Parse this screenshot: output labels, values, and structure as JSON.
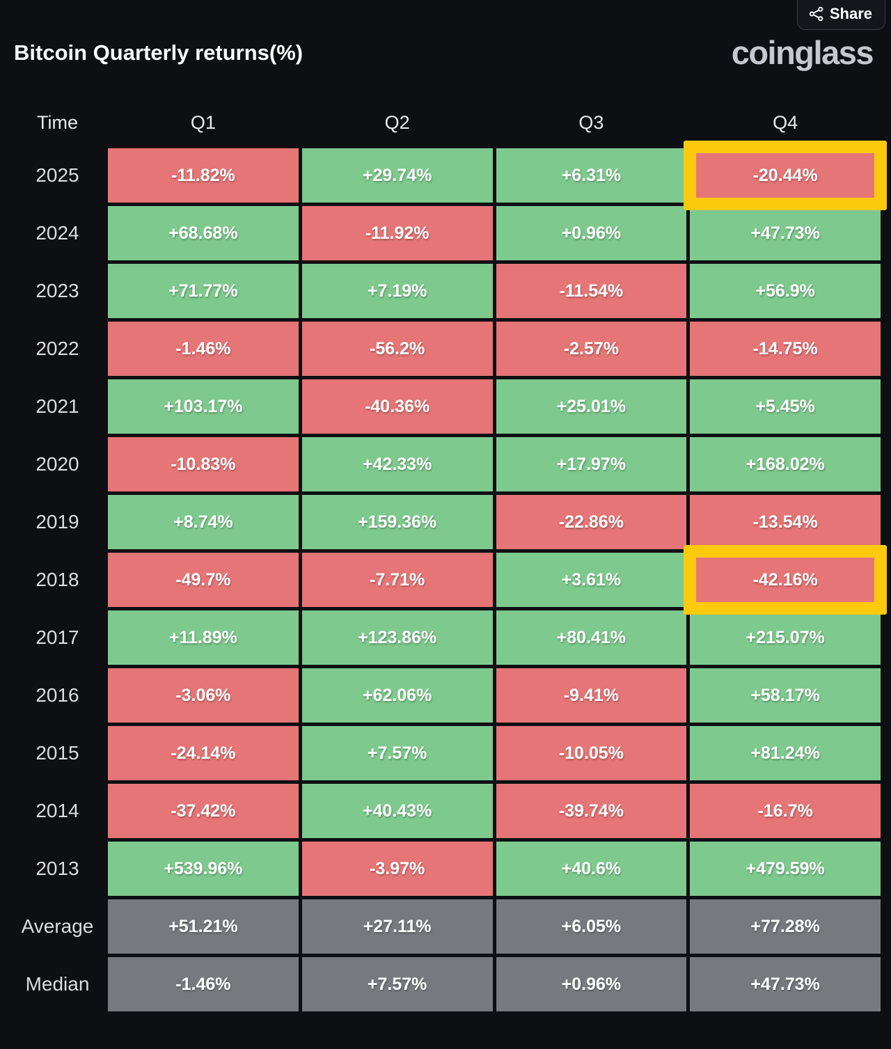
{
  "header": {
    "title": "Bitcoin Quarterly returns(%)",
    "share_label": "Share",
    "logo": "coinglass"
  },
  "colors": {
    "background": "#0d0f13",
    "positive": "#7ec98d",
    "negative": "#e57576",
    "neutral": "#77797e",
    "highlight": "#fdc90d"
  },
  "table": {
    "columns": [
      "Time",
      "Q1",
      "Q2",
      "Q3",
      "Q4"
    ],
    "rows": [
      {
        "label": "2025",
        "cells": [
          {
            "text": "-11.82%",
            "tone": "neg"
          },
          {
            "text": "+29.74%",
            "tone": "pos"
          },
          {
            "text": "+6.31%",
            "tone": "pos"
          },
          {
            "text": "-20.44%",
            "tone": "neg",
            "highlight": true
          }
        ]
      },
      {
        "label": "2024",
        "cells": [
          {
            "text": "+68.68%",
            "tone": "pos"
          },
          {
            "text": "-11.92%",
            "tone": "neg"
          },
          {
            "text": "+0.96%",
            "tone": "pos"
          },
          {
            "text": "+47.73%",
            "tone": "pos"
          }
        ]
      },
      {
        "label": "2023",
        "cells": [
          {
            "text": "+71.77%",
            "tone": "pos"
          },
          {
            "text": "+7.19%",
            "tone": "pos"
          },
          {
            "text": "-11.54%",
            "tone": "neg"
          },
          {
            "text": "+56.9%",
            "tone": "pos"
          }
        ]
      },
      {
        "label": "2022",
        "cells": [
          {
            "text": "-1.46%",
            "tone": "neg"
          },
          {
            "text": "-56.2%",
            "tone": "neg"
          },
          {
            "text": "-2.57%",
            "tone": "neg"
          },
          {
            "text": "-14.75%",
            "tone": "neg"
          }
        ]
      },
      {
        "label": "2021",
        "cells": [
          {
            "text": "+103.17%",
            "tone": "pos"
          },
          {
            "text": "-40.36%",
            "tone": "neg"
          },
          {
            "text": "+25.01%",
            "tone": "pos"
          },
          {
            "text": "+5.45%",
            "tone": "pos"
          }
        ]
      },
      {
        "label": "2020",
        "cells": [
          {
            "text": "-10.83%",
            "tone": "neg"
          },
          {
            "text": "+42.33%",
            "tone": "pos"
          },
          {
            "text": "+17.97%",
            "tone": "pos"
          },
          {
            "text": "+168.02%",
            "tone": "pos"
          }
        ]
      },
      {
        "label": "2019",
        "cells": [
          {
            "text": "+8.74%",
            "tone": "pos"
          },
          {
            "text": "+159.36%",
            "tone": "pos"
          },
          {
            "text": "-22.86%",
            "tone": "neg"
          },
          {
            "text": "-13.54%",
            "tone": "neg"
          }
        ]
      },
      {
        "label": "2018",
        "cells": [
          {
            "text": "-49.7%",
            "tone": "neg"
          },
          {
            "text": "-7.71%",
            "tone": "neg"
          },
          {
            "text": "+3.61%",
            "tone": "pos"
          },
          {
            "text": "-42.16%",
            "tone": "neg",
            "highlight": true
          }
        ]
      },
      {
        "label": "2017",
        "cells": [
          {
            "text": "+11.89%",
            "tone": "pos"
          },
          {
            "text": "+123.86%",
            "tone": "pos"
          },
          {
            "text": "+80.41%",
            "tone": "pos"
          },
          {
            "text": "+215.07%",
            "tone": "pos"
          }
        ]
      },
      {
        "label": "2016",
        "cells": [
          {
            "text": "-3.06%",
            "tone": "neg"
          },
          {
            "text": "+62.06%",
            "tone": "pos"
          },
          {
            "text": "-9.41%",
            "tone": "neg"
          },
          {
            "text": "+58.17%",
            "tone": "pos"
          }
        ]
      },
      {
        "label": "2015",
        "cells": [
          {
            "text": "-24.14%",
            "tone": "neg"
          },
          {
            "text": "+7.57%",
            "tone": "pos"
          },
          {
            "text": "-10.05%",
            "tone": "neg"
          },
          {
            "text": "+81.24%",
            "tone": "pos"
          }
        ]
      },
      {
        "label": "2014",
        "cells": [
          {
            "text": "-37.42%",
            "tone": "neg"
          },
          {
            "text": "+40.43%",
            "tone": "pos"
          },
          {
            "text": "-39.74%",
            "tone": "neg"
          },
          {
            "text": "-16.7%",
            "tone": "neg"
          }
        ]
      },
      {
        "label": "2013",
        "cells": [
          {
            "text": "+539.96%",
            "tone": "pos"
          },
          {
            "text": "-3.97%",
            "tone": "neg"
          },
          {
            "text": "+40.6%",
            "tone": "pos"
          },
          {
            "text": "+479.59%",
            "tone": "pos"
          }
        ]
      },
      {
        "label": "Average",
        "cells": [
          {
            "text": "+51.21%",
            "tone": "neutral"
          },
          {
            "text": "+27.11%",
            "tone": "neutral"
          },
          {
            "text": "+6.05%",
            "tone": "neutral"
          },
          {
            "text": "+77.28%",
            "tone": "neutral"
          }
        ]
      },
      {
        "label": "Median",
        "cells": [
          {
            "text": "-1.46%",
            "tone": "neutral"
          },
          {
            "text": "+7.57%",
            "tone": "neutral"
          },
          {
            "text": "+0.96%",
            "tone": "neutral"
          },
          {
            "text": "+47.73%",
            "tone": "neutral"
          }
        ]
      }
    ]
  },
  "chart_data": {
    "type": "table",
    "title": "Bitcoin Quarterly returns(%)",
    "columns": [
      "Q1",
      "Q2",
      "Q3",
      "Q4"
    ],
    "rows": [
      "2025",
      "2024",
      "2023",
      "2022",
      "2021",
      "2020",
      "2019",
      "2018",
      "2017",
      "2016",
      "2015",
      "2014",
      "2013",
      "Average",
      "Median"
    ],
    "values": [
      [
        -11.82,
        29.74,
        6.31,
        -20.44
      ],
      [
        68.68,
        -11.92,
        0.96,
        47.73
      ],
      [
        71.77,
        7.19,
        -11.54,
        56.9
      ],
      [
        -1.46,
        -56.2,
        -2.57,
        -14.75
      ],
      [
        103.17,
        -40.36,
        25.01,
        5.45
      ],
      [
        -10.83,
        42.33,
        17.97,
        168.02
      ],
      [
        8.74,
        159.36,
        -22.86,
        -13.54
      ],
      [
        -49.7,
        -7.71,
        3.61,
        -42.16
      ],
      [
        11.89,
        123.86,
        80.41,
        215.07
      ],
      [
        -3.06,
        62.06,
        -9.41,
        58.17
      ],
      [
        -24.14,
        7.57,
        -10.05,
        81.24
      ],
      [
        -37.42,
        40.43,
        -39.74,
        -16.7
      ],
      [
        539.96,
        -3.97,
        40.6,
        479.59
      ],
      [
        51.21,
        27.11,
        6.05,
        77.28
      ],
      [
        -1.46,
        7.57,
        0.96,
        47.73
      ]
    ],
    "highlighted_cells": [
      [
        "2025",
        "Q4"
      ],
      [
        "2018",
        "Q4"
      ]
    ],
    "color_coding": "green = positive return, red = negative return, gray = Average/Median rows"
  }
}
